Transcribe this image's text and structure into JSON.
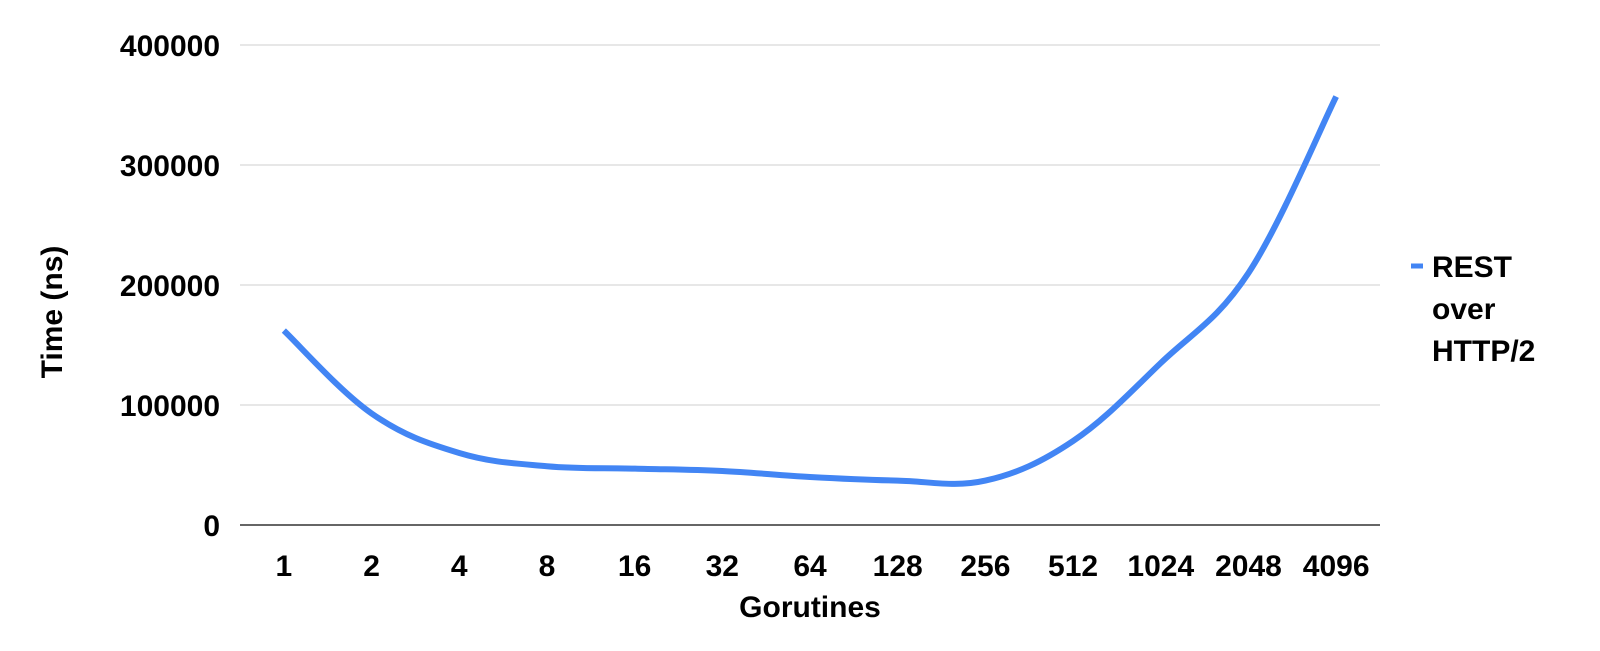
{
  "chart_data": {
    "type": "line",
    "title": "",
    "xlabel": "Gorutines",
    "ylabel": "Time (ns)",
    "categories": [
      "1",
      "2",
      "4",
      "8",
      "16",
      "32",
      "64",
      "128",
      "256",
      "512",
      "1024",
      "2048",
      "4096"
    ],
    "series": [
      {
        "name": "REST over HTTP/2",
        "color": "#4285f4",
        "values": [
          162000,
          93000,
          60000,
          49000,
          47000,
          45000,
          40000,
          37000,
          37000,
          70000,
          135000,
          210000,
          357000
        ]
      }
    ],
    "ylim": [
      0,
      400000
    ],
    "yticks": [
      "0",
      "100000",
      "200000",
      "300000",
      "400000"
    ],
    "grid": true,
    "legend_position": "right",
    "legend_lines": [
      "REST",
      "over",
      "HTTP/2"
    ]
  }
}
